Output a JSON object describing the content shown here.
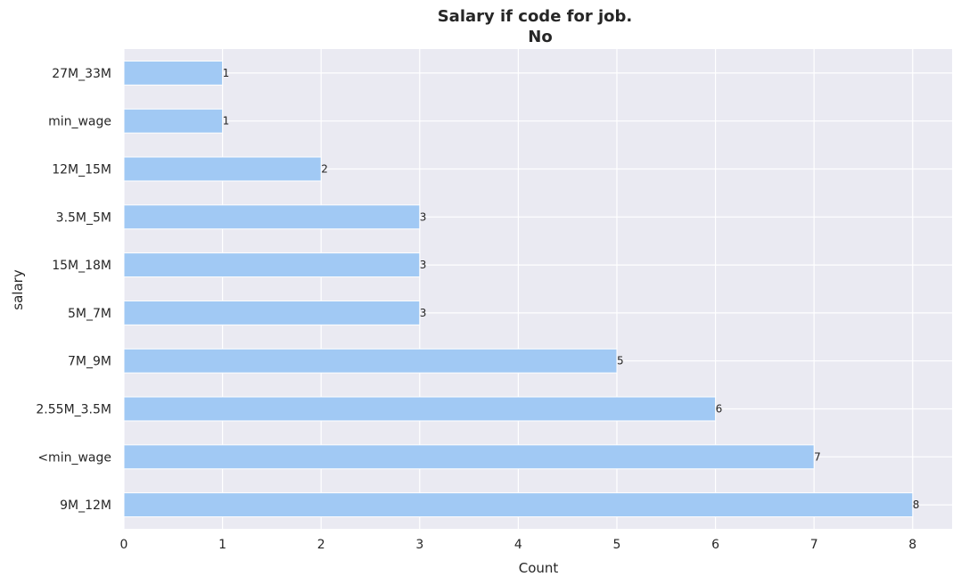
{
  "chart_data": {
    "type": "bar",
    "orientation": "horizontal",
    "title_lines": [
      "Salary if code for job.",
      "No"
    ],
    "xlabel": "Count",
    "ylabel": "salary",
    "categories": [
      "9M_12M",
      "<min_wage",
      "2.55M_3.5M",
      "7M_9M",
      "5M_7M",
      "15M_18M",
      "3.5M_5M",
      "12M_15M",
      "min_wage",
      "27M_33M"
    ],
    "values": [
      8,
      7,
      6,
      5,
      3,
      3,
      3,
      2,
      1,
      1
    ],
    "data_labels": [
      "8",
      "7",
      "6",
      "5",
      "3",
      "3",
      "3",
      "2",
      "1",
      "1"
    ],
    "xticks": [
      "0",
      "1",
      "2",
      "3",
      "4",
      "5",
      "6",
      "7",
      "8"
    ],
    "xlim": [
      0,
      8.4
    ],
    "grid": true,
    "bar_color": "#a1c9f4",
    "background_color": "#eaeaf2",
    "grid_color": "#ffffff"
  }
}
